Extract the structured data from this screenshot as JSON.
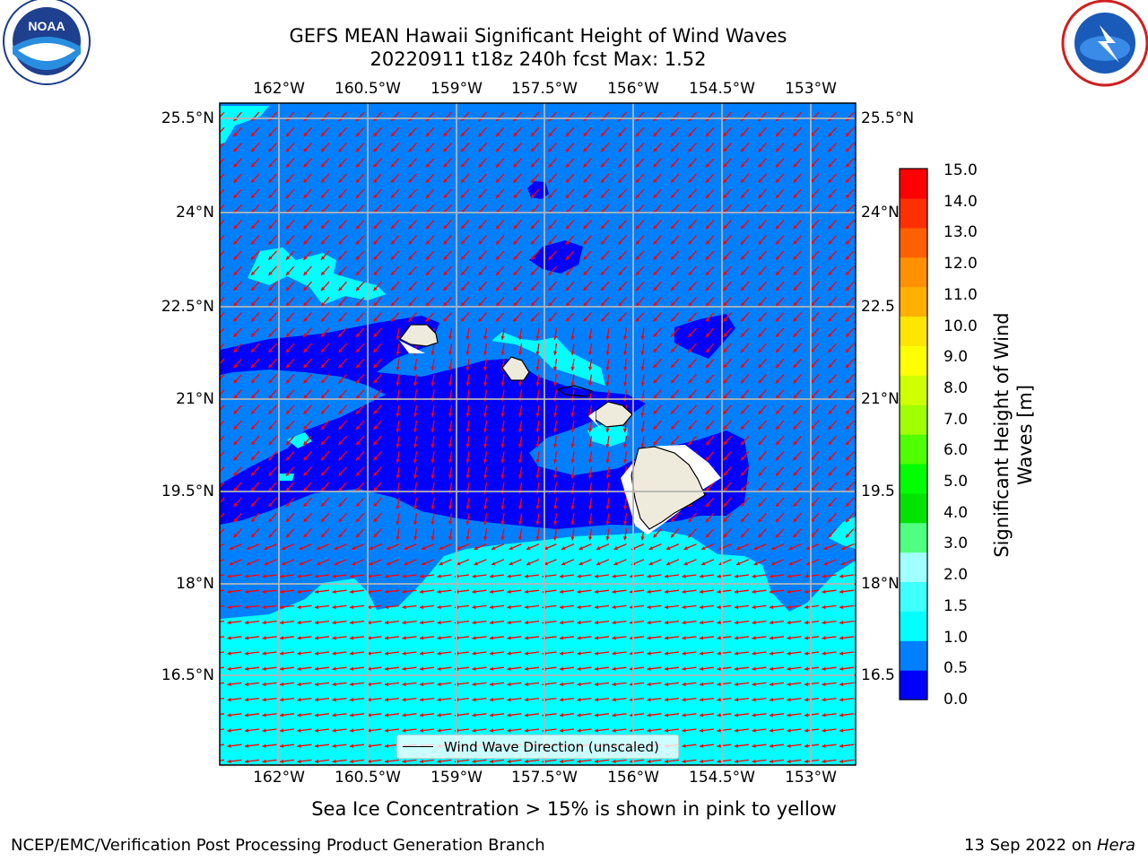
{
  "title": {
    "line1": "GEFS MEAN Hawaii Significant Height of Wind Waves",
    "line2": "20220911 t18z 240h fcst   Max: 1.52"
  },
  "logos": {
    "left": {
      "name": "noaa-logo",
      "text": "NOAA"
    },
    "right": {
      "name": "national-weather-service-logo",
      "text": "NATIONAL WEATHER SERVICE"
    }
  },
  "map": {
    "lon_ticks": [
      "162°W",
      "160.5°W",
      "159°W",
      "157.5°W",
      "156°W",
      "154.5°W",
      "153°W"
    ],
    "lat_ticks": [
      "25.5°N",
      "24°N",
      "22.5°N",
      "21°N",
      "19.5°N",
      "18°N",
      "16.5°N"
    ],
    "lat_ticks_right": [
      "25.5°N",
      "24°N",
      "22.5",
      "21°N",
      "19.5",
      "18°N",
      "16.5"
    ],
    "legend_label": "Wind Wave Direction (unscaled)",
    "colors": {
      "band_0_0_5": "#0000ff",
      "band_0_5_1_0": "#0080ff",
      "band_1_0_1_5": "#00ffff",
      "land": "#efebdc",
      "arrows": "#ff0000",
      "grid": "#b4b4b4"
    }
  },
  "colorbar": {
    "title_line1": "Significant Height of Wind",
    "title_line2": "Waves [m]",
    "labels": [
      "15.0",
      "14.0",
      "13.0",
      "12.0",
      "11.0",
      "10.0",
      "9.0",
      "8.0",
      "7.0",
      "6.0",
      "5.0",
      "4.0",
      "3.0",
      "2.0",
      "1.5",
      "1.0",
      "0.5",
      "0.0"
    ],
    "colors_bottom_to_top": [
      "#0000ff",
      "#0080ff",
      "#00ffff",
      "#40ffff",
      "#a0ffff",
      "#50ff80",
      "#00e400",
      "#00ff00",
      "#50ff00",
      "#a0ff00",
      "#d0ff00",
      "#ffff00",
      "#ffe600",
      "#ffb000",
      "#ff9000",
      "#ff6000",
      "#ff3000",
      "#ff0000"
    ]
  },
  "caption": "Sea Ice Concentration > 15% is shown in pink to yellow",
  "footer": {
    "left": "NCEP/EMC/Verification Post Processing Product Generation Branch",
    "right_date": "13 Sep 2022 on ",
    "right_machine": "Hera"
  }
}
